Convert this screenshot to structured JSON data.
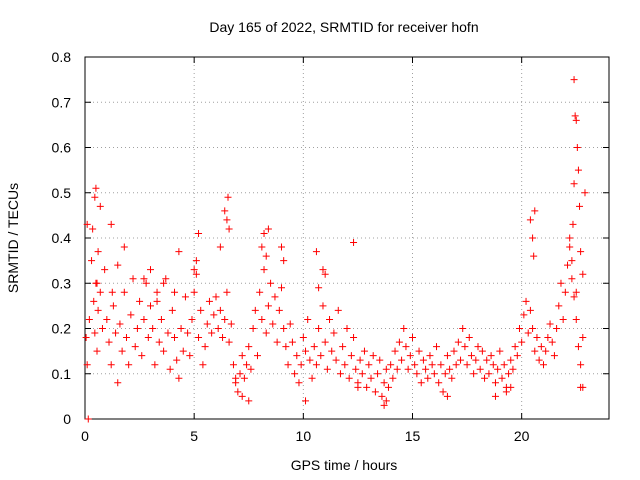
{
  "chart_data": {
    "type": "scatter",
    "title": "Day 165 of 2022, SRMTID for receiver hofn",
    "xlabel": "GPS time / hours",
    "ylabel": "SRMTID / TECUs",
    "xlim": [
      0,
      24
    ],
    "ylim": [
      0,
      0.8
    ],
    "xticks": [
      0,
      5,
      10,
      15,
      20
    ],
    "xtick_labels": [
      "0",
      "5",
      "10",
      "15",
      "20"
    ],
    "yticks": [
      0,
      0.1,
      0.2,
      0.3,
      0.4,
      0.5,
      0.6,
      0.7,
      0.8
    ],
    "ytick_labels": [
      "0",
      "0.1",
      "0.2",
      "0.3",
      "0.4",
      "0.5",
      "0.6",
      "0.7",
      "0.8"
    ],
    "grid": true,
    "marker": "+",
    "color": "#ff0000",
    "series": [
      {
        "name": "SRMTID",
        "x": [
          0.05,
          0.1,
          0.15,
          0.2,
          0.3,
          0.35,
          0.4,
          0.45,
          0.5,
          0.55,
          0.6,
          0.7,
          0.8,
          0.9,
          1.0,
          1.1,
          1.2,
          1.3,
          1.4,
          1.5,
          1.6,
          1.7,
          1.8,
          1.9,
          2.0,
          2.1,
          2.2,
          2.3,
          2.4,
          2.5,
          2.6,
          2.7,
          2.8,
          2.9,
          3.0,
          3.1,
          3.2,
          3.3,
          3.4,
          3.5,
          3.6,
          3.7,
          3.8,
          3.9,
          4.0,
          4.1,
          4.2,
          4.3,
          4.4,
          4.5,
          4.6,
          4.7,
          4.8,
          4.9,
          5.0,
          5.1,
          5.2,
          5.3,
          5.4,
          5.5,
          5.6,
          5.7,
          5.8,
          5.9,
          6.0,
          6.1,
          6.2,
          6.3,
          6.4,
          6.5,
          6.6,
          6.7,
          6.8,
          6.9,
          7.0,
          7.1,
          7.2,
          7.3,
          7.4,
          7.5,
          7.6,
          7.7,
          7.8,
          7.9,
          8.0,
          8.1,
          8.2,
          8.3,
          8.4,
          8.5,
          8.6,
          8.7,
          8.8,
          8.9,
          9.0,
          9.1,
          9.2,
          9.3,
          9.4,
          9.5,
          9.6,
          9.7,
          9.8,
          9.9,
          10.0,
          10.1,
          10.2,
          10.3,
          10.4,
          10.5,
          10.6,
          10.7,
          10.8,
          10.9,
          11.0,
          11.1,
          11.2,
          11.3,
          11.4,
          11.5,
          11.6,
          11.7,
          11.8,
          11.9,
          12.0,
          12.1,
          12.2,
          12.3,
          12.4,
          12.5,
          12.6,
          12.7,
          12.8,
          12.9,
          13.0,
          13.1,
          13.2,
          13.3,
          13.4,
          13.5,
          13.6,
          13.7,
          13.8,
          13.9,
          14.0,
          14.1,
          14.2,
          14.3,
          14.4,
          14.5,
          14.6,
          14.7,
          14.8,
          14.9,
          15.0,
          15.1,
          15.2,
          15.3,
          15.4,
          15.5,
          15.6,
          15.7,
          15.8,
          15.9,
          16.0,
          16.1,
          16.2,
          16.3,
          16.4,
          16.5,
          16.6,
          16.7,
          16.8,
          16.9,
          17.0,
          17.1,
          17.2,
          17.3,
          17.4,
          17.5,
          17.6,
          17.7,
          17.8,
          17.9,
          18.0,
          18.1,
          18.2,
          18.3,
          18.4,
          18.5,
          18.6,
          18.7,
          18.8,
          18.9,
          19.0,
          19.1,
          19.2,
          19.3,
          19.4,
          19.5,
          19.6,
          19.7,
          19.8,
          19.9,
          20.0,
          20.1,
          20.2,
          20.3,
          20.4,
          20.5,
          20.6,
          20.7,
          20.8,
          20.9,
          21.0,
          21.1,
          21.2,
          21.3,
          21.4,
          21.5,
          21.6,
          21.7,
          21.8,
          21.9,
          22.0,
          22.1,
          22.2,
          22.3,
          22.4,
          22.5,
          22.6,
          22.7,
          22.8,
          22.9,
          0.5,
          0.45,
          0.55,
          0.6,
          0.7,
          1.2,
          1.25,
          1.5,
          2.7,
          3.0,
          3.6,
          4.1,
          4.3,
          5.0,
          5.1,
          5.2,
          6.2,
          6.4,
          6.5,
          6.55,
          6.6,
          8.1,
          8.2,
          8.3,
          8.4,
          9.0,
          9.1,
          10.6,
          10.7,
          10.9,
          11.0,
          12.3,
          20.4,
          20.5,
          20.55,
          20.6,
          22.2,
          22.3,
          22.35,
          22.4,
          22.45,
          22.5,
          22.55,
          22.6,
          22.65,
          22.7,
          22.8,
          22.5,
          22.4,
          0.1,
          1.8,
          3.3,
          6.9,
          7.2,
          7.5,
          10.1,
          12.5,
          13.7,
          13.8,
          16.6,
          18.8,
          19.3,
          19.5,
          22.7,
          22.8
        ],
        "y": [
          0.18,
          0.12,
          0.0,
          0.22,
          0.35,
          0.42,
          0.26,
          0.19,
          0.3,
          0.15,
          0.24,
          0.28,
          0.2,
          0.33,
          0.22,
          0.17,
          0.12,
          0.25,
          0.19,
          0.08,
          0.21,
          0.15,
          0.28,
          0.18,
          0.12,
          0.23,
          0.31,
          0.16,
          0.2,
          0.26,
          0.14,
          0.22,
          0.3,
          0.18,
          0.25,
          0.2,
          0.12,
          0.28,
          0.17,
          0.22,
          0.15,
          0.31,
          0.19,
          0.11,
          0.24,
          0.18,
          0.13,
          0.09,
          0.2,
          0.15,
          0.27,
          0.19,
          0.14,
          0.22,
          0.28,
          0.32,
          0.18,
          0.24,
          0.12,
          0.16,
          0.21,
          0.26,
          0.19,
          0.23,
          0.27,
          0.2,
          0.24,
          0.18,
          0.22,
          0.28,
          0.17,
          0.21,
          0.12,
          0.08,
          0.06,
          0.1,
          0.14,
          0.09,
          0.12,
          0.16,
          0.11,
          0.2,
          0.24,
          0.14,
          0.28,
          0.22,
          0.33,
          0.19,
          0.25,
          0.3,
          0.21,
          0.27,
          0.17,
          0.24,
          0.29,
          0.2,
          0.16,
          0.12,
          0.21,
          0.17,
          0.1,
          0.14,
          0.08,
          0.12,
          0.18,
          0.15,
          0.22,
          0.13,
          0.09,
          0.16,
          0.12,
          0.2,
          0.14,
          0.25,
          0.17,
          0.11,
          0.22,
          0.15,
          0.19,
          0.13,
          0.24,
          0.1,
          0.16,
          0.12,
          0.2,
          0.09,
          0.14,
          0.18,
          0.11,
          0.08,
          0.13,
          0.1,
          0.15,
          0.07,
          0.12,
          0.09,
          0.14,
          0.06,
          0.1,
          0.13,
          0.05,
          0.08,
          0.11,
          0.07,
          0.12,
          0.09,
          0.15,
          0.11,
          0.17,
          0.13,
          0.2,
          0.16,
          0.11,
          0.14,
          0.18,
          0.12,
          0.1,
          0.15,
          0.08,
          0.13,
          0.11,
          0.09,
          0.14,
          0.12,
          0.1,
          0.16,
          0.08,
          0.12,
          0.06,
          0.1,
          0.14,
          0.11,
          0.09,
          0.15,
          0.12,
          0.17,
          0.13,
          0.2,
          0.16,
          0.12,
          0.18,
          0.14,
          0.1,
          0.13,
          0.16,
          0.11,
          0.15,
          0.09,
          0.13,
          0.1,
          0.14,
          0.12,
          0.08,
          0.11,
          0.15,
          0.09,
          0.12,
          0.07,
          0.1,
          0.13,
          0.11,
          0.16,
          0.14,
          0.2,
          0.17,
          0.23,
          0.26,
          0.19,
          0.24,
          0.2,
          0.15,
          0.18,
          0.13,
          0.16,
          0.12,
          0.15,
          0.18,
          0.21,
          0.17,
          0.14,
          0.2,
          0.25,
          0.3,
          0.22,
          0.28,
          0.34,
          0.38,
          0.31,
          0.27,
          0.22,
          0.16,
          0.12,
          0.18,
          0.5,
          0.51,
          0.49,
          0.3,
          0.37,
          0.47,
          0.43,
          0.28,
          0.34,
          0.31,
          0.33,
          0.3,
          0.28,
          0.37,
          0.33,
          0.35,
          0.41,
          0.38,
          0.46,
          0.44,
          0.49,
          0.42,
          0.38,
          0.41,
          0.36,
          0.42,
          0.38,
          0.35,
          0.37,
          0.29,
          0.33,
          0.32,
          0.39,
          0.44,
          0.4,
          0.36,
          0.46,
          0.4,
          0.35,
          0.43,
          0.52,
          0.67,
          0.66,
          0.6,
          0.55,
          0.47,
          0.37,
          0.32,
          0.28,
          0.75,
          0.43,
          0.38,
          0.26,
          0.09,
          0.05,
          0.04,
          0.04,
          0.07,
          0.03,
          0.04,
          0.05,
          0.05,
          0.06,
          0.07,
          0.07,
          0.07
        ]
      }
    ]
  }
}
